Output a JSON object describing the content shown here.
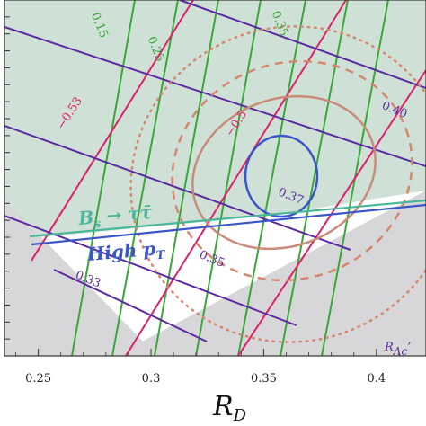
{
  "chart_data": {
    "type": "contour",
    "x_axis": {
      "label_main": "R",
      "label_sub": "D",
      "ticks": [
        0.25,
        0.3,
        0.35,
        0.4
      ],
      "tick_labels": [
        "0.25",
        "0.3",
        "0.35",
        "0.4"
      ],
      "xlim": [
        0.235,
        0.422
      ]
    },
    "y_axis": {
      "ylim": [
        0.245,
        0.35
      ]
    },
    "shaded_regions": [
      {
        "color": "#cfe1d6"
      },
      {
        "color": "#d7d6d8"
      }
    ],
    "contour_families": [
      {
        "color": "#5b2aa0",
        "labels": [
          {
            "text": "0.40",
            "x": 0.408,
            "y": 0.3175
          },
          {
            "text": "0.37",
            "x": 0.362,
            "y": 0.292
          },
          {
            "text": "0.35",
            "x": 0.327,
            "y": 0.2735
          },
          {
            "text": "0.33",
            "x": 0.272,
            "y": 0.2675
          }
        ]
      },
      {
        "color": "#3aa63a",
        "labels": [
          {
            "text": "0.15",
            "x": 0.277,
            "y": 0.3425
          },
          {
            "text": "0.25",
            "x": 0.302,
            "y": 0.3355
          },
          {
            "text": "0.35",
            "x": 0.357,
            "y": 0.343
          }
        ]
      },
      {
        "color": "#e0206a",
        "labels": [
          {
            "text": "−0.53",
            "x": 0.264,
            "y": 0.3165
          },
          {
            "text": "−0.5",
            "x": 0.338,
            "y": 0.3135
          }
        ]
      }
    ],
    "fit_contours": [
      {
        "color": "#d4876f",
        "style": "dotted"
      },
      {
        "color": "#d4876f",
        "style": "dashed"
      },
      {
        "color": "#c98b7a",
        "style": "solid"
      },
      {
        "color": "#3a55c9",
        "style": "solid"
      }
    ],
    "constraint_labels": [
      {
        "text": "B",
        "sub": "s",
        "rest": " → ττ̄",
        "color": "#49b79a"
      },
      {
        "text": "High p",
        "sub": "T",
        "color": "#3a55c9"
      }
    ],
    "corner_label": {
      "text": "R",
      "sub": "Λc",
      "suffix": "’",
      "color": "#5b2aa0"
    }
  }
}
